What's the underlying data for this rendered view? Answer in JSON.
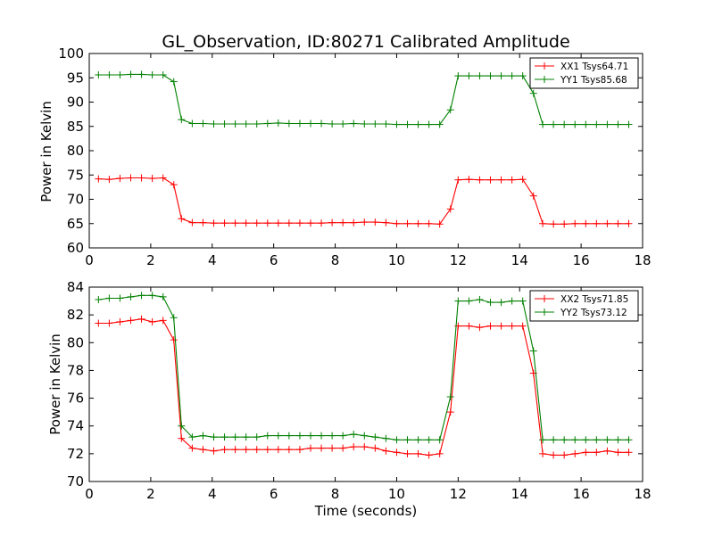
{
  "chart_data": [
    {
      "type": "line",
      "title": "GL_Observation, ID:80271 Calibrated Amplitude",
      "ylabel": "Power in Kelvin",
      "xlabel": "",
      "xlim": [
        0,
        18
      ],
      "ylim": [
        60,
        100
      ],
      "xticks": [
        0,
        2,
        4,
        6,
        8,
        10,
        12,
        14,
        16,
        18
      ],
      "yticks": [
        60,
        65,
        70,
        75,
        80,
        85,
        90,
        95,
        100
      ],
      "grid": false,
      "legend_position": "top-right",
      "x": [
        0.3,
        0.65,
        1.0,
        1.35,
        1.7,
        2.05,
        2.4,
        2.75,
        3.0,
        3.35,
        3.7,
        4.05,
        4.4,
        4.75,
        5.1,
        5.45,
        5.8,
        6.15,
        6.5,
        6.85,
        7.2,
        7.55,
        7.9,
        8.25,
        8.6,
        8.95,
        9.3,
        9.65,
        10.0,
        10.35,
        10.7,
        11.05,
        11.4,
        11.75,
        12.0,
        12.35,
        12.7,
        13.05,
        13.4,
        13.75,
        14.1,
        14.45,
        14.75,
        15.1,
        15.45,
        15.8,
        16.15,
        16.5,
        16.85,
        17.2,
        17.55
      ],
      "series": [
        {
          "name": "XX1 Tsys64.71",
          "color": "#ff0000",
          "values": [
            74.2,
            74.1,
            74.3,
            74.4,
            74.4,
            74.3,
            74.4,
            73.0,
            66.0,
            65.2,
            65.2,
            65.1,
            65.1,
            65.1,
            65.1,
            65.1,
            65.1,
            65.1,
            65.1,
            65.1,
            65.1,
            65.1,
            65.2,
            65.2,
            65.2,
            65.3,
            65.3,
            65.2,
            65.0,
            65.0,
            65.0,
            65.0,
            64.9,
            68.0,
            74.0,
            74.1,
            74.0,
            74.0,
            74.0,
            74.0,
            74.1,
            70.7,
            65.0,
            64.9,
            64.9,
            65.0,
            65.0,
            65.0,
            65.0,
            65.0,
            65.0
          ]
        },
        {
          "name": "YY1 Tsys85.68",
          "color": "#008000",
          "values": [
            95.6,
            95.6,
            95.6,
            95.7,
            95.7,
            95.6,
            95.6,
            94.2,
            86.4,
            85.6,
            85.6,
            85.5,
            85.5,
            85.5,
            85.5,
            85.5,
            85.6,
            85.7,
            85.6,
            85.6,
            85.6,
            85.6,
            85.5,
            85.5,
            85.6,
            85.5,
            85.5,
            85.5,
            85.4,
            85.4,
            85.4,
            85.4,
            85.4,
            88.4,
            95.4,
            95.4,
            95.4,
            95.4,
            95.4,
            95.4,
            95.4,
            91.8,
            85.4,
            85.4,
            85.4,
            85.4,
            85.4,
            85.4,
            85.4,
            85.4,
            85.4
          ]
        }
      ]
    },
    {
      "type": "line",
      "title": "",
      "ylabel": "Power in Kelvin",
      "xlabel": "Time (seconds)",
      "xlim": [
        0,
        18
      ],
      "ylim": [
        70,
        84
      ],
      "xticks": [
        0,
        2,
        4,
        6,
        8,
        10,
        12,
        14,
        16,
        18
      ],
      "yticks": [
        70,
        72,
        74,
        76,
        78,
        80,
        82,
        84
      ],
      "grid": false,
      "legend_position": "top-right",
      "x": [
        0.3,
        0.65,
        1.0,
        1.35,
        1.7,
        2.05,
        2.4,
        2.75,
        3.0,
        3.35,
        3.7,
        4.05,
        4.4,
        4.75,
        5.1,
        5.45,
        5.8,
        6.15,
        6.5,
        6.85,
        7.2,
        7.55,
        7.9,
        8.25,
        8.6,
        8.95,
        9.3,
        9.65,
        10.0,
        10.35,
        10.7,
        11.05,
        11.4,
        11.75,
        12.0,
        12.35,
        12.7,
        13.05,
        13.4,
        13.75,
        14.1,
        14.45,
        14.75,
        15.1,
        15.45,
        15.8,
        16.15,
        16.5,
        16.85,
        17.2,
        17.55
      ],
      "series": [
        {
          "name": "XX2 Tsys71.85",
          "color": "#ff0000",
          "values": [
            81.4,
            81.4,
            81.5,
            81.6,
            81.7,
            81.5,
            81.6,
            80.2,
            73.1,
            72.4,
            72.3,
            72.2,
            72.3,
            72.3,
            72.3,
            72.3,
            72.3,
            72.3,
            72.3,
            72.3,
            72.4,
            72.4,
            72.4,
            72.4,
            72.5,
            72.5,
            72.4,
            72.2,
            72.1,
            72.0,
            72.0,
            71.9,
            72.0,
            75.0,
            81.2,
            81.2,
            81.1,
            81.2,
            81.2,
            81.2,
            81.2,
            77.8,
            72.0,
            71.9,
            71.9,
            72.0,
            72.1,
            72.1,
            72.2,
            72.1,
            72.1
          ]
        },
        {
          "name": "YY2 Tsys73.12",
          "color": "#008000",
          "values": [
            83.1,
            83.2,
            83.2,
            83.3,
            83.4,
            83.4,
            83.3,
            81.8,
            74.0,
            73.2,
            73.3,
            73.2,
            73.2,
            73.2,
            73.2,
            73.2,
            73.3,
            73.3,
            73.3,
            73.3,
            73.3,
            73.3,
            73.3,
            73.3,
            73.4,
            73.3,
            73.2,
            73.1,
            73.0,
            73.0,
            73.0,
            73.0,
            73.0,
            76.1,
            83.0,
            83.0,
            83.1,
            82.9,
            82.9,
            83.0,
            83.0,
            79.4,
            73.0,
            73.0,
            73.0,
            73.0,
            73.0,
            73.0,
            73.0,
            73.0,
            73.0
          ]
        }
      ]
    }
  ]
}
